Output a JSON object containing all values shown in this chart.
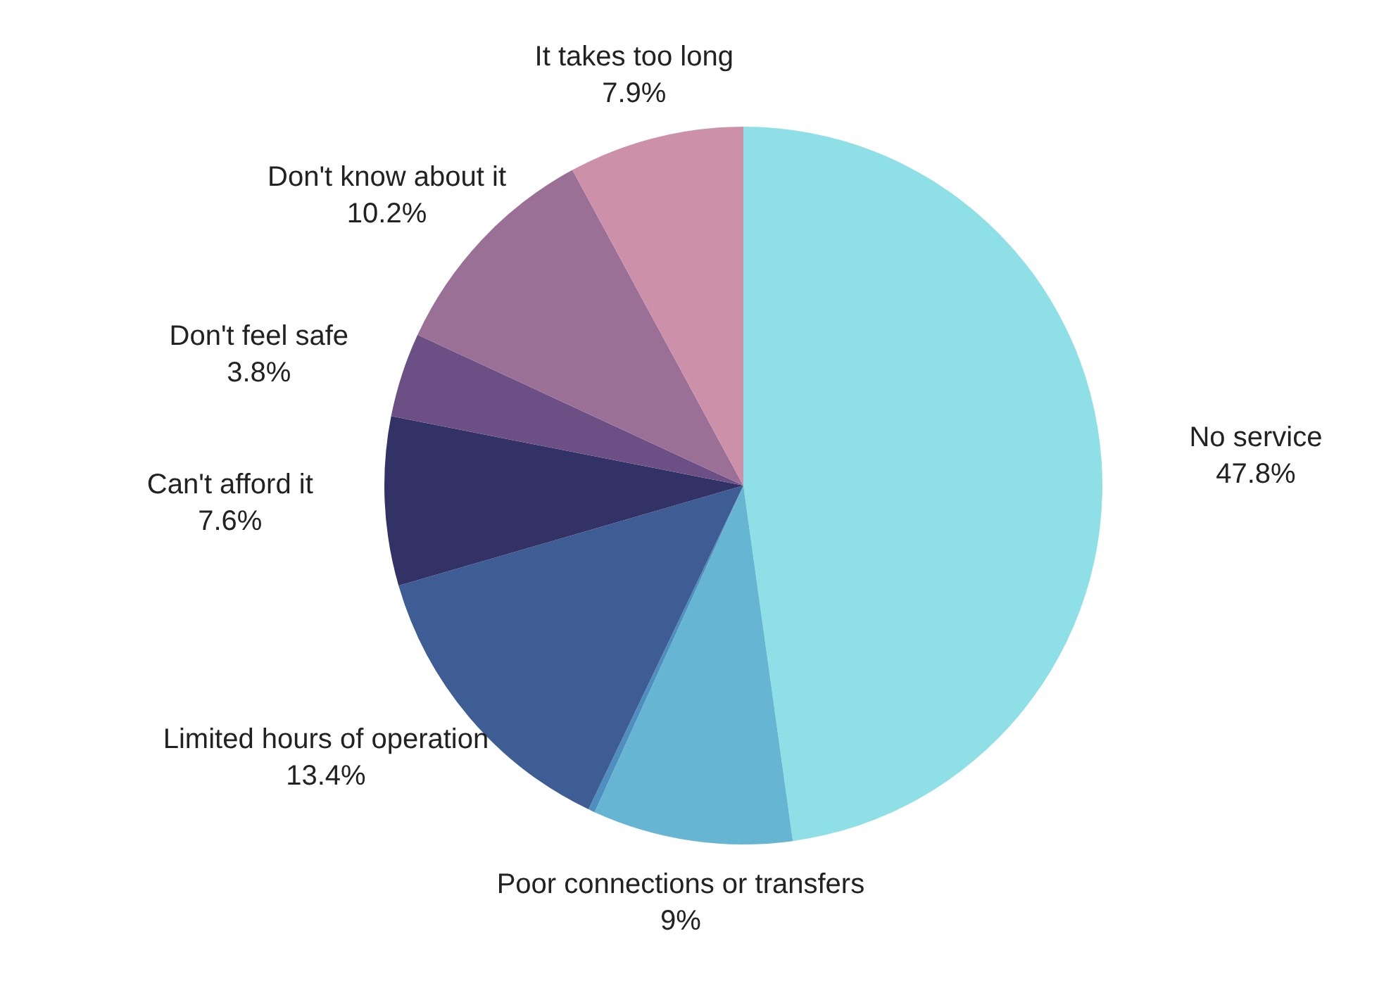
{
  "chart_data": {
    "type": "pie",
    "categories": [
      "No service",
      "Poor connections or transfers",
      null,
      "Limited hours of operation",
      "Can't afford it",
      "Don't feel safe",
      "Don't know about it",
      "It takes too long"
    ],
    "values": [
      47.8,
      9,
      0.3,
      13.4,
      7.6,
      3.8,
      10.2,
      7.9
    ],
    "value_labels": [
      "47.8%",
      "9%",
      null,
      "13.4%",
      "7.6%",
      "3.8%",
      "10.2%",
      "7.9%"
    ],
    "colors": [
      "#8fe0e6",
      "#66b6d3",
      "#4f8fbf",
      "#3d5d94",
      "#323266",
      "#6b4f85",
      "#9b7096",
      "#cc90a8"
    ],
    "legend": false
  }
}
